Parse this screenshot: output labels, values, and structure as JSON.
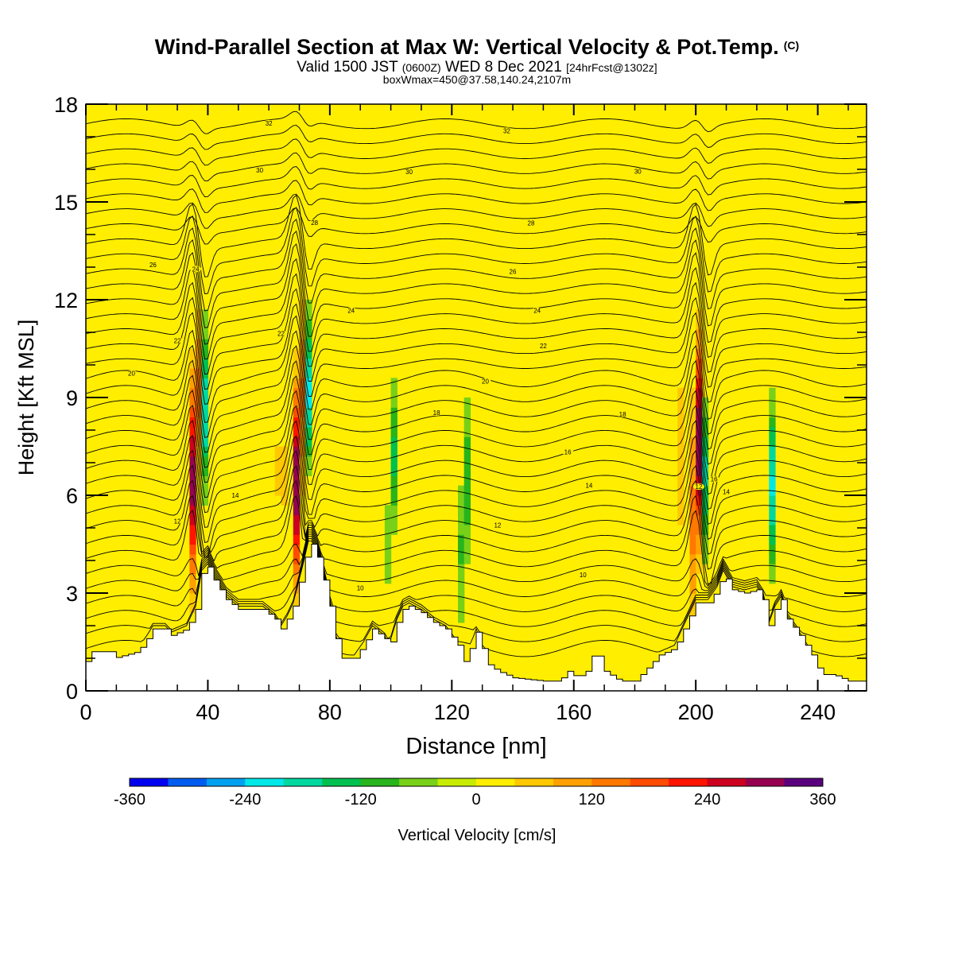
{
  "header": {
    "title": "Wind-Parallel Section at Max W: Vertical Velocity & Pot.Temp.",
    "title_mark": "(C)",
    "valid_a": "Valid 1500 JST",
    "valid_b": "(0600Z)",
    "valid_c": "WED 8 Dec 2021",
    "valid_d": "[24hrFcst@1302z]",
    "box_line": "boxWmax=450@37.58,140.24,2107m"
  },
  "chart_data": {
    "type": "contour-section",
    "xlabel": "Distance [nm]",
    "ylabel": "Height [Kft MSL]",
    "xlim": [
      0,
      256
    ],
    "ylim": [
      0,
      18
    ],
    "x_ticks": [
      0,
      40,
      80,
      120,
      160,
      200,
      240
    ],
    "y_ticks": [
      0,
      3,
      6,
      9,
      12,
      15,
      18
    ],
    "colorbar": {
      "label": "Vertical Velocity [cm/s]",
      "range": [
        -360,
        360
      ],
      "tick_values": [
        -360,
        -240,
        -120,
        0,
        120,
        240,
        360
      ],
      "colors": [
        "#0000f0",
        "#005cf0",
        "#00a0f0",
        "#00e8e8",
        "#00d8a0",
        "#00c050",
        "#28b41c",
        "#78d018",
        "#c8ec00",
        "#ffee00",
        "#ffc800",
        "#ffa000",
        "#ff7800",
        "#ff4c00",
        "#ff1400",
        "#cc0020",
        "#960050",
        "#5a007e"
      ]
    },
    "updraft_cores_nm": [
      35,
      69,
      200
    ],
    "downdraft_bands_nm": [
      38,
      72,
      100,
      124,
      203,
      225
    ],
    "terrain_kft": [
      [
        0,
        0.9
      ],
      [
        2,
        1.2
      ],
      [
        8,
        1.2
      ],
      [
        9,
        1.0
      ],
      [
        17,
        1.2
      ],
      [
        20,
        1.6
      ],
      [
        22,
        1.9
      ],
      [
        26,
        1.9
      ],
      [
        28,
        1.7
      ],
      [
        33,
        1.9
      ],
      [
        36,
        2.5
      ],
      [
        38,
        3.6
      ],
      [
        40,
        3.8
      ],
      [
        42,
        3.4
      ],
      [
        46,
        2.8
      ],
      [
        50,
        2.5
      ],
      [
        58,
        2.5
      ],
      [
        62,
        2.2
      ],
      [
        64,
        1.9
      ],
      [
        66,
        2.2
      ],
      [
        68,
        2.6
      ],
      [
        71,
        3.7
      ],
      [
        73,
        4.5
      ],
      [
        74,
        4.5
      ],
      [
        76,
        4.1
      ],
      [
        78,
        3.4
      ],
      [
        80,
        2.6
      ],
      [
        82,
        1.6
      ],
      [
        84,
        1.0
      ],
      [
        88,
        1.0
      ],
      [
        91,
        1.4
      ],
      [
        94,
        1.9
      ],
      [
        98,
        1.6
      ],
      [
        99,
        1.3
      ],
      [
        100,
        1.5
      ],
      [
        102,
        2.1
      ],
      [
        104,
        2.5
      ],
      [
        106,
        2.6
      ],
      [
        110,
        2.4
      ],
      [
        114,
        2.1
      ],
      [
        118,
        1.9
      ],
      [
        122,
        1.4
      ],
      [
        124,
        0.9
      ],
      [
        126,
        1.3
      ],
      [
        128,
        1.8
      ],
      [
        130,
        1.3
      ],
      [
        132,
        0.8
      ],
      [
        135,
        0.6
      ],
      [
        140,
        0.4
      ],
      [
        150,
        0.3
      ],
      [
        155,
        0.3
      ],
      [
        158,
        0.6
      ],
      [
        161,
        0.4
      ],
      [
        164,
        0.6
      ],
      [
        167,
        1.3
      ],
      [
        170,
        0.6
      ],
      [
        175,
        0.3
      ],
      [
        180,
        0.3
      ],
      [
        188,
        1.1
      ],
      [
        193,
        1.3
      ],
      [
        196,
        1.9
      ],
      [
        200,
        2.7
      ],
      [
        204,
        2.7
      ],
      [
        207,
        3.1
      ],
      [
        209,
        3.6
      ],
      [
        212,
        3.1
      ],
      [
        216,
        3.0
      ],
      [
        220,
        3.1
      ],
      [
        222,
        2.8
      ],
      [
        224,
        2.0
      ],
      [
        226,
        2.5
      ],
      [
        228,
        2.8
      ],
      [
        230,
        2.2
      ],
      [
        234,
        1.7
      ],
      [
        238,
        1.1
      ],
      [
        241,
        0.5
      ],
      [
        245,
        0.5
      ],
      [
        250,
        0.3
      ],
      [
        256,
        0.3
      ]
    ],
    "theta_contours_c": [
      {
        "label": "32",
        "y_kft": 17.3,
        "label_x_nm": [
          60,
          138
        ]
      },
      {
        "label": "30",
        "y_kft": 15.9,
        "label_x_nm": [
          57,
          106,
          181
        ]
      },
      {
        "label": "28",
        "y_kft": 14.5,
        "label_x_nm": [
          75,
          146
        ]
      },
      {
        "label": "26",
        "y_kft": 13.0,
        "label_x_nm": [
          22,
          140
        ]
      },
      {
        "label": "24",
        "y_kft": 11.8,
        "label_x_nm": [
          36,
          87,
          148
        ]
      },
      {
        "label": "22",
        "y_kft": 10.7,
        "label_x_nm": [
          30,
          64,
          150
        ]
      },
      {
        "label": "20",
        "y_kft": 9.5,
        "label_x_nm": [
          15,
          131
        ]
      },
      {
        "label": "18",
        "y_kft": 8.3,
        "label_x_nm": [
          115,
          176
        ]
      },
      {
        "label": "16",
        "y_kft": 7.3,
        "label_x_nm": [
          158,
          206
        ]
      },
      {
        "label": "14",
        "y_kft": 6.1,
        "label_x_nm": [
          49,
          165,
          210
        ]
      },
      {
        "label": "12",
        "y_kft": 5.2,
        "label_x_nm": [
          30,
          135,
          201
        ]
      },
      {
        "label": "10",
        "y_kft": 3.4,
        "label_x_nm": [
          90,
          163
        ]
      }
    ]
  }
}
